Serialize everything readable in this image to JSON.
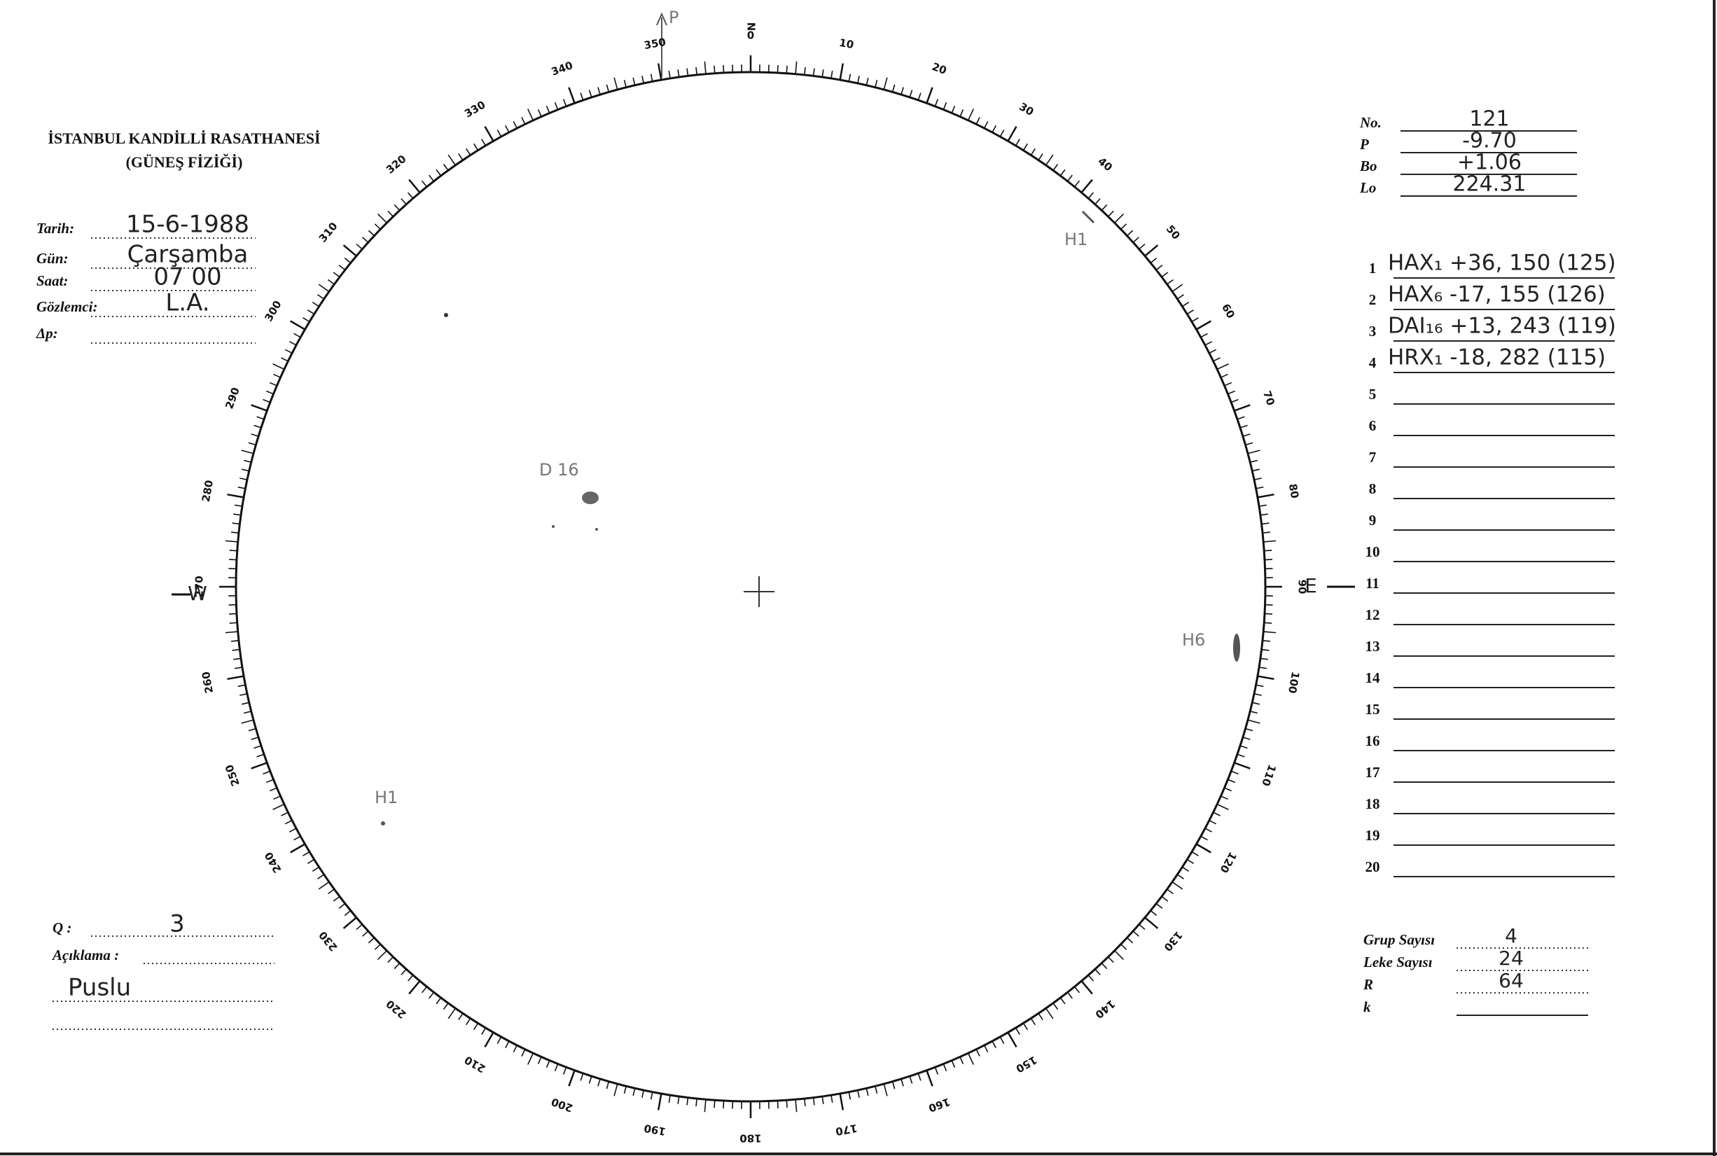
{
  "header": {
    "title": "İSTANBUL KANDİLLİ RASATHANESİ",
    "subtitle": "(GÜNEŞ FİZİĞİ)"
  },
  "observation": [
    {
      "label": "Tarih:",
      "value": "15-6-1988"
    },
    {
      "label": "Gün:",
      "value": "Çarşamba"
    },
    {
      "label": "Saat:",
      "value": "07 00"
    },
    {
      "label": "Gözlemci:",
      "value": "L.A."
    },
    {
      "label": "Δp:"
    }
  ],
  "parameters": [
    {
      "label": "No.",
      "value": "121"
    },
    {
      "label": "P",
      "value": "-9.70"
    },
    {
      "label": "Bo",
      "value": "+1.06"
    },
    {
      "label": "Lo",
      "value": "224.31"
    }
  ],
  "groups": [
    {
      "number": 1,
      "entry": "HAX₁ +36, 150 (125)"
    },
    {
      "number": 2,
      "entry": "HAX₆ -17, 155 (126)"
    },
    {
      "number": 3,
      "entry": "DAI₁₆ +13, 243 (119)"
    },
    {
      "number": 4,
      "entry": "HRX₁ -18, 282 (115)"
    },
    {
      "number": 5
    },
    {
      "number": 6
    },
    {
      "number": 7
    },
    {
      "number": 8
    },
    {
      "number": 9
    },
    {
      "number": 10
    },
    {
      "number": 11
    },
    {
      "number": 12
    },
    {
      "number": 13
    },
    {
      "number": 14
    },
    {
      "number": 15
    },
    {
      "number": 16
    },
    {
      "number": 17
    },
    {
      "number": 18
    },
    {
      "number": 19
    },
    {
      "number": 20
    }
  ],
  "notes": [
    {
      "label": "Q :",
      "value": "3"
    },
    {
      "label": "Açıklama :"
    }
  ],
  "remark": "Puslu",
  "counts": [
    {
      "label": "Grup Sayısı",
      "value": "4"
    },
    {
      "label": "Leke Sayısı",
      "value": "24"
    },
    {
      "label": "R",
      "value": "64"
    },
    {
      "label": "k"
    }
  ],
  "disk": {
    "north": "N",
    "east": "E",
    "west": "W",
    "pole": "P",
    "dial": [
      0,
      10,
      20,
      30,
      40,
      50,
      60,
      70,
      80,
      90,
      100,
      110,
      120,
      130,
      140,
      150,
      160,
      170,
      180,
      190,
      200,
      210,
      220,
      230,
      240,
      250,
      260,
      270,
      280,
      290,
      300,
      310,
      320,
      330,
      340,
      350
    ],
    "annotations": [
      "H1",
      "D 16",
      "H6",
      "H1"
    ]
  }
}
